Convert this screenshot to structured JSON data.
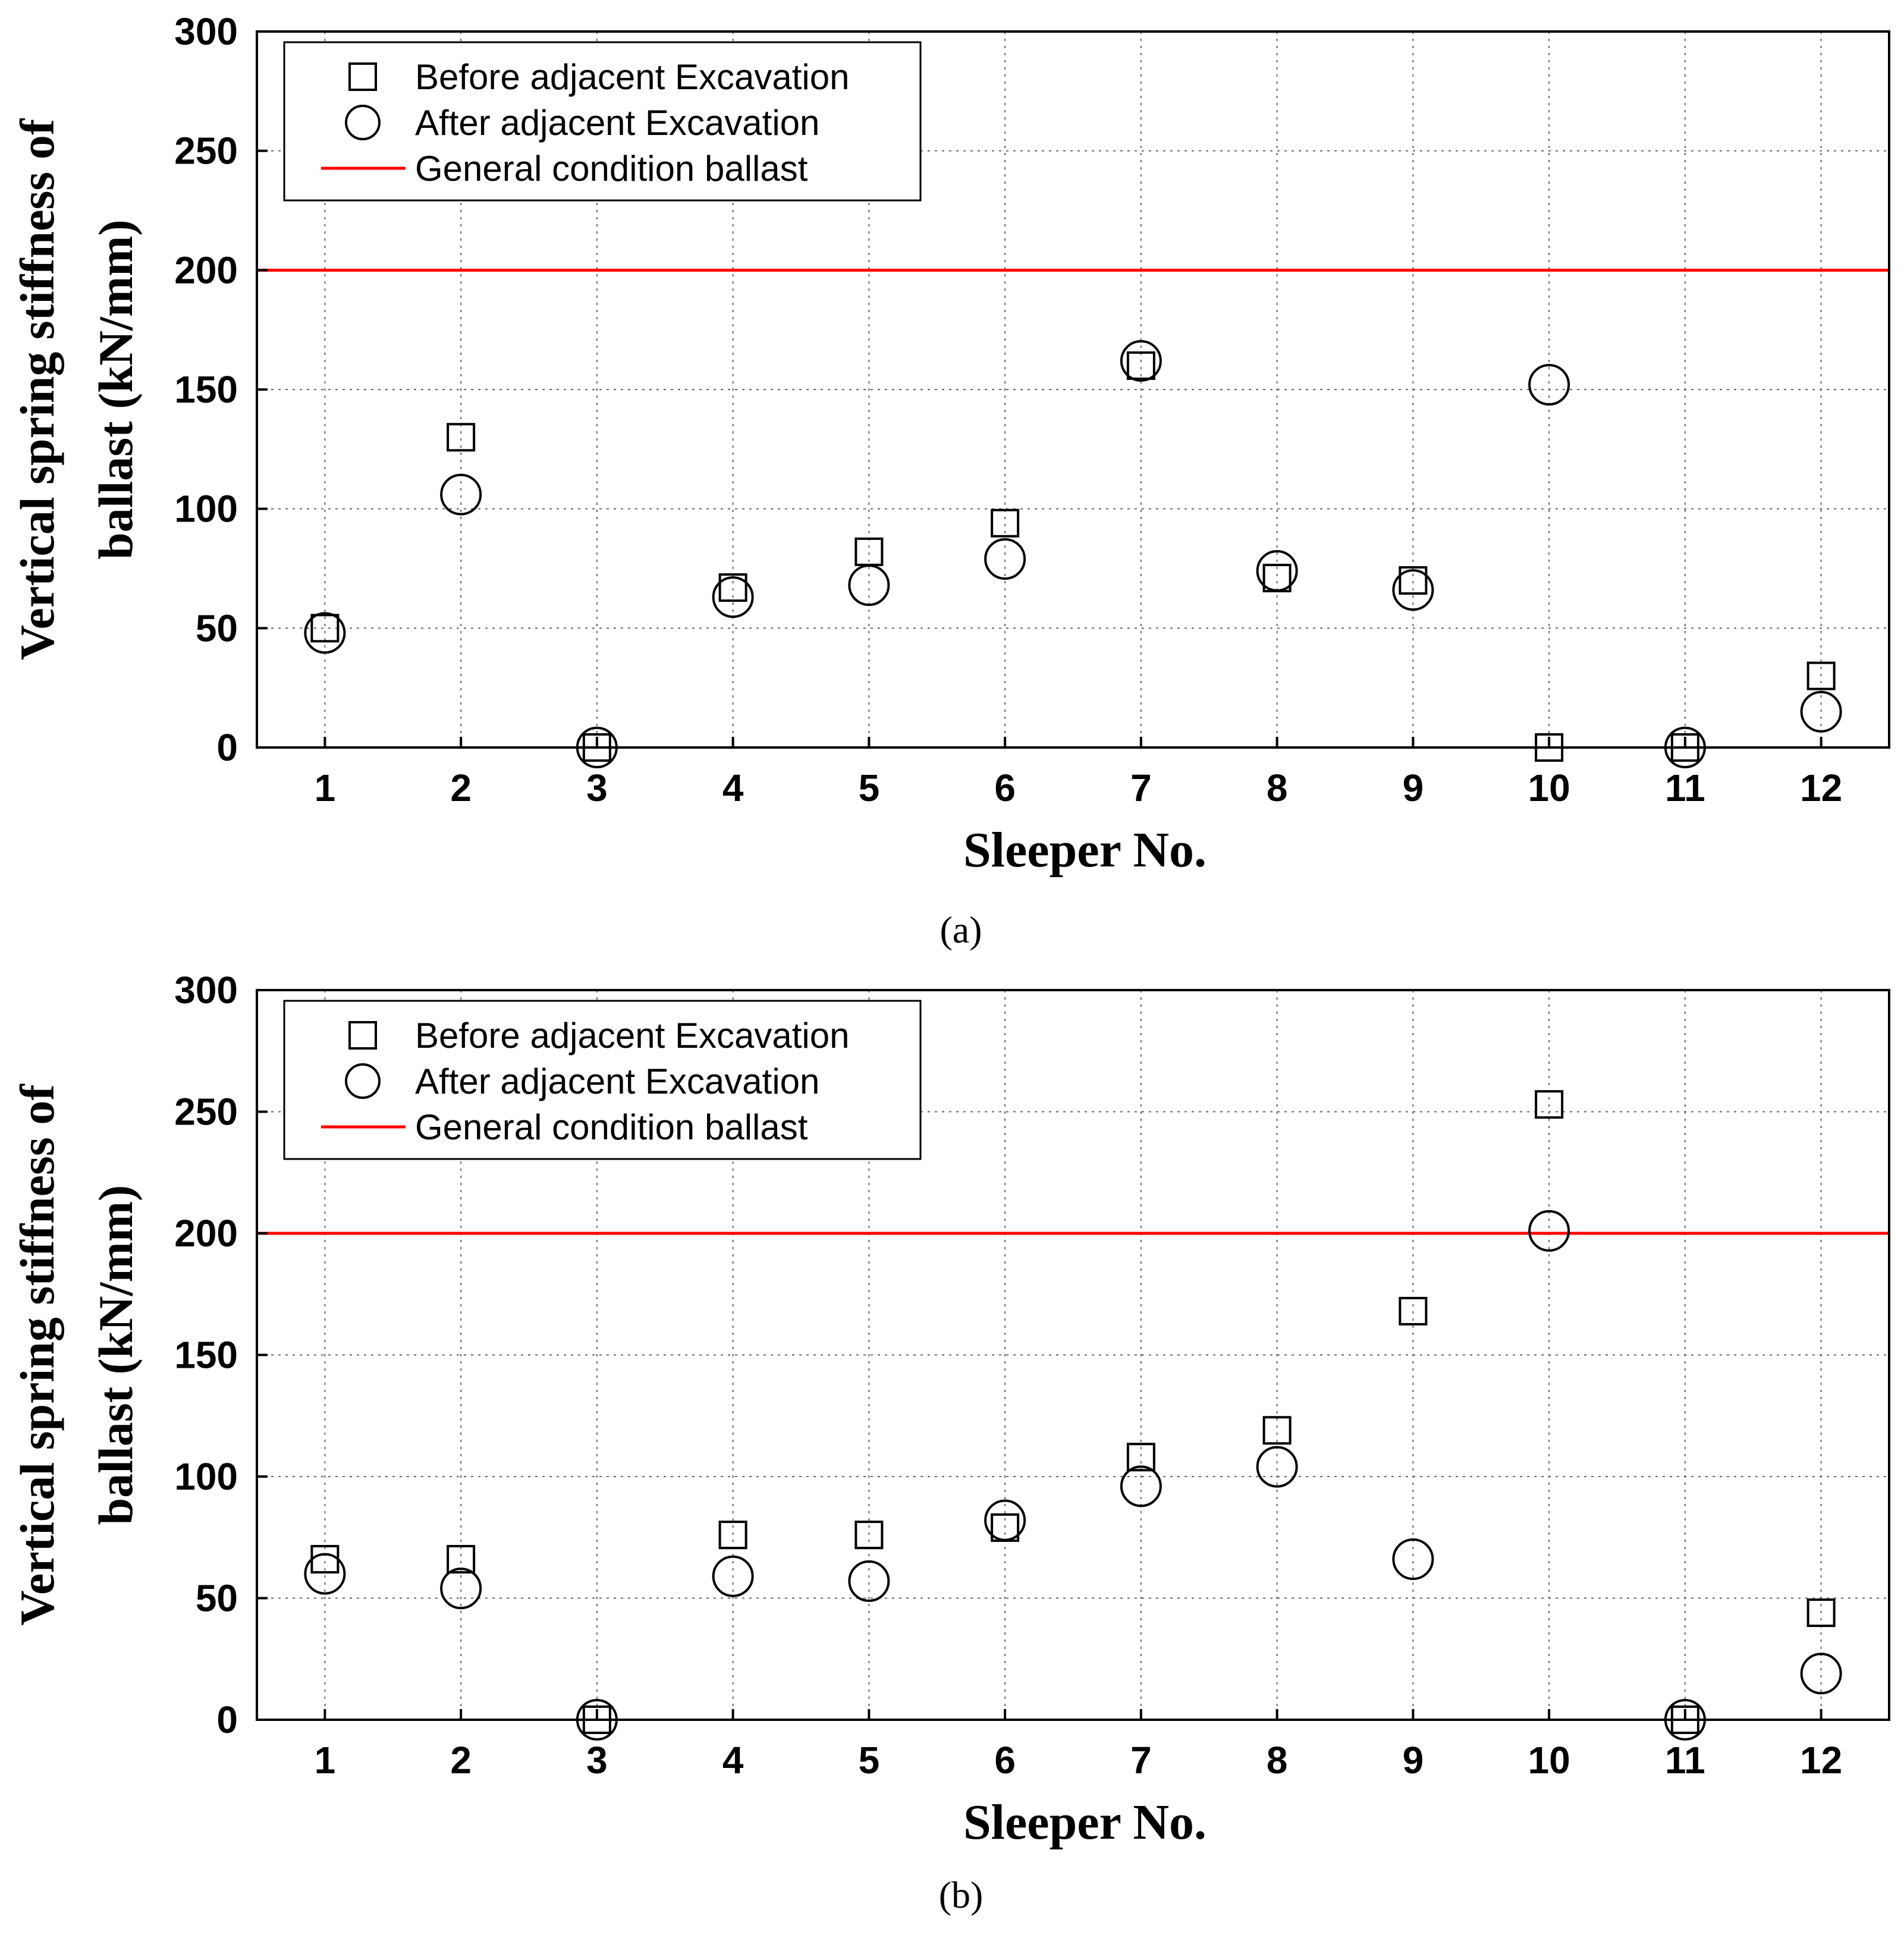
{
  "chart_data": [
    {
      "type": "scatter",
      "panel": "(a)",
      "xlabel": "Sleeper No.",
      "ylabel": [
        "Vertical spring stiffness of",
        "ballast (kN/mm)"
      ],
      "categories": [
        "1",
        "2",
        "3",
        "4",
        "5",
        "6",
        "7",
        "8",
        "9",
        "10",
        "11",
        "12"
      ],
      "ylim": [
        0,
        300
      ],
      "yticks": [
        "0",
        "50",
        "100",
        "150",
        "200",
        "250",
        "300"
      ],
      "grid": true,
      "legend_position": "top-left",
      "series": [
        {
          "name": "Before adjacent Excavation",
          "marker": "square",
          "values": [
            50,
            130,
            0,
            67,
            82,
            94,
            160,
            71,
            70,
            0,
            0,
            30
          ]
        },
        {
          "name": "After adjacent Excavation",
          "marker": "circle",
          "values": [
            48,
            106,
            0,
            63,
            68,
            79,
            162,
            74,
            66,
            152,
            0,
            15
          ]
        }
      ],
      "reference_line": {
        "name": "General condition ballast",
        "value": 200,
        "color": "#ff0000"
      }
    },
    {
      "type": "scatter",
      "panel": "(b)",
      "xlabel": "Sleeper No.",
      "ylabel": [
        "Vertical spring stiffness of",
        "ballast (kN/mm)"
      ],
      "categories": [
        "1",
        "2",
        "3",
        "4",
        "5",
        "6",
        "7",
        "8",
        "9",
        "10",
        "11",
        "12"
      ],
      "ylim": [
        0,
        300
      ],
      "yticks": [
        "0",
        "50",
        "100",
        "150",
        "200",
        "250",
        "300"
      ],
      "grid": true,
      "legend_position": "top-left",
      "series": [
        {
          "name": "Before adjacent Excavation",
          "marker": "square",
          "values": [
            66,
            66,
            0,
            76,
            76,
            79,
            108,
            119,
            168,
            253,
            0,
            44
          ]
        },
        {
          "name": "After adjacent Excavation",
          "marker": "circle",
          "values": [
            60,
            54,
            0,
            59,
            57,
            82,
            96,
            104,
            66,
            201,
            0,
            19
          ]
        }
      ],
      "reference_line": {
        "name": "General condition ballast",
        "value": 200,
        "color": "#ff0000"
      }
    }
  ]
}
